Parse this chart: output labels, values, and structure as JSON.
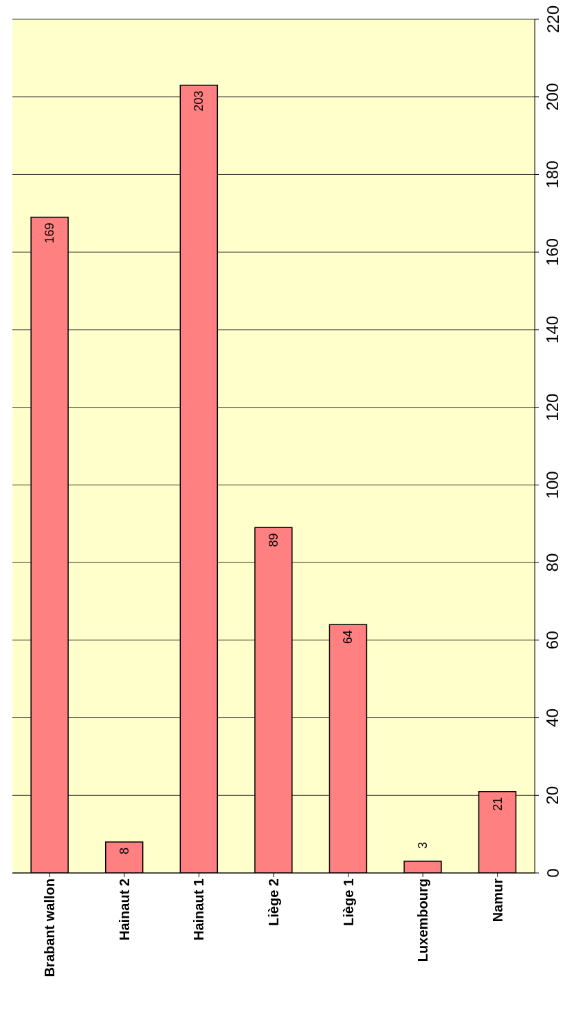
{
  "chart_data": {
    "type": "bar",
    "categories": [
      "Brabant wallon",
      "Hainaut 2",
      "Hainaut 1",
      "Liège 2",
      "Liège 1",
      "Luxembourg",
      "Namur"
    ],
    "values": [
      169,
      8,
      203,
      89,
      64,
      3,
      21
    ],
    "color": "#ff8080",
    "ylim": [
      0,
      220
    ],
    "yticks": [
      0,
      20,
      40,
      60,
      80,
      100,
      120,
      140,
      160,
      180,
      200,
      220
    ],
    "grid": "y",
    "data_labels": true
  }
}
